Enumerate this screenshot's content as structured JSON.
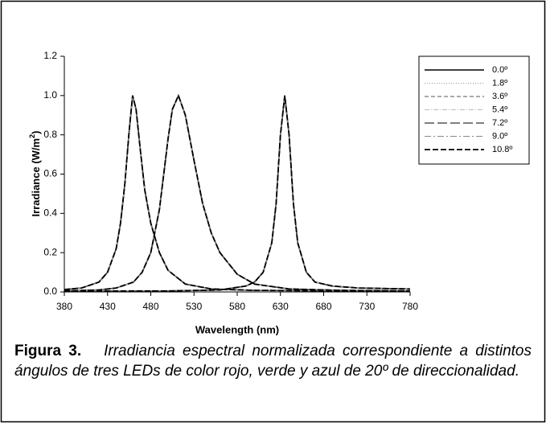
{
  "chart_data": {
    "type": "line",
    "x_label": "Wavelength (nm)",
    "y_label": [
      "Irradiance (W/m",
      "2",
      ")"
    ],
    "xlim": [
      380,
      780
    ],
    "xticks": [
      380,
      430,
      480,
      530,
      580,
      630,
      680,
      730,
      780
    ],
    "ylim": [
      0,
      1.2
    ],
    "yticks": [
      {
        "value": 0,
        "label": "0.0"
      },
      0.2,
      0.4,
      0.6,
      0.8,
      {
        "value": 1,
        "label": "1.0"
      },
      1.2
    ],
    "legend": "right",
    "x": [
      [
        380,
        400,
        420,
        430,
        440,
        445,
        450,
        455,
        459,
        463,
        468,
        473,
        480,
        490,
        500,
        520,
        550,
        600,
        700,
        780
      ],
      [
        380,
        420,
        440,
        460,
        470,
        480,
        490,
        500,
        505,
        512,
        520,
        530,
        540,
        550,
        560,
        580,
        600,
        640,
        700,
        780
      ],
      [
        380,
        500,
        560,
        590,
        600,
        610,
        620,
        625,
        630,
        635,
        640,
        645,
        650,
        660,
        670,
        690,
        720,
        780
      ]
    ],
    "series": [
      {
        "name": "0.0º",
        "color": "#000000",
        "dash": "none",
        "width": 1.6,
        "values": [
          [
            0.012,
            0.02,
            0.05,
            0.1,
            0.22,
            0.35,
            0.55,
            0.82,
            1.0,
            0.93,
            0.72,
            0.52,
            0.35,
            0.2,
            0.11,
            0.04,
            0.015,
            0.008,
            0.005,
            0.005
          ],
          [
            0.005,
            0.01,
            0.02,
            0.05,
            0.1,
            0.2,
            0.42,
            0.78,
            0.93,
            1.0,
            0.9,
            0.67,
            0.45,
            0.3,
            0.2,
            0.09,
            0.04,
            0.015,
            0.008,
            0.005
          ],
          [
            0.005,
            0.005,
            0.01,
            0.03,
            0.05,
            0.1,
            0.25,
            0.45,
            0.8,
            1.0,
            0.8,
            0.45,
            0.25,
            0.1,
            0.05,
            0.03,
            0.02,
            0.015
          ]
        ]
      },
      {
        "name": "1.8º",
        "color": "#999999",
        "dash": "1 2",
        "width": 1,
        "values": [
          [
            0.012,
            0.02,
            0.05,
            0.1,
            0.22,
            0.35,
            0.55,
            0.82,
            1.0,
            0.93,
            0.72,
            0.52,
            0.35,
            0.2,
            0.11,
            0.04,
            0.015,
            0.008,
            0.005,
            0.005
          ],
          [
            0.005,
            0.01,
            0.02,
            0.05,
            0.1,
            0.2,
            0.42,
            0.78,
            0.93,
            1.0,
            0.9,
            0.67,
            0.45,
            0.3,
            0.2,
            0.09,
            0.04,
            0.015,
            0.008,
            0.005
          ],
          [
            0.005,
            0.005,
            0.01,
            0.03,
            0.05,
            0.1,
            0.25,
            0.45,
            0.8,
            1.0,
            0.8,
            0.45,
            0.25,
            0.1,
            0.05,
            0.03,
            0.02,
            0.015
          ]
        ]
      },
      {
        "name": "3.6º",
        "color": "#555555",
        "dash": "5 3",
        "width": 1,
        "values": [
          [
            0.012,
            0.02,
            0.05,
            0.1,
            0.22,
            0.35,
            0.55,
            0.82,
            1.0,
            0.93,
            0.72,
            0.52,
            0.35,
            0.2,
            0.11,
            0.04,
            0.015,
            0.008,
            0.005,
            0.005
          ],
          [
            0.005,
            0.01,
            0.02,
            0.05,
            0.1,
            0.2,
            0.42,
            0.78,
            0.93,
            1.0,
            0.9,
            0.67,
            0.45,
            0.3,
            0.2,
            0.09,
            0.04,
            0.015,
            0.008,
            0.005
          ],
          [
            0.005,
            0.005,
            0.01,
            0.03,
            0.05,
            0.1,
            0.25,
            0.45,
            0.8,
            1.0,
            0.8,
            0.45,
            0.25,
            0.1,
            0.05,
            0.03,
            0.02,
            0.015
          ]
        ]
      },
      {
        "name": "5.4º",
        "color": "#bbbbbb",
        "dash": "6 2 1 2",
        "width": 1,
        "values": [
          [
            0.012,
            0.02,
            0.05,
            0.1,
            0.22,
            0.35,
            0.55,
            0.82,
            1.0,
            0.93,
            0.72,
            0.52,
            0.35,
            0.2,
            0.11,
            0.04,
            0.015,
            0.008,
            0.005,
            0.005
          ],
          [
            0.005,
            0.01,
            0.02,
            0.05,
            0.1,
            0.2,
            0.42,
            0.78,
            0.93,
            1.0,
            0.9,
            0.67,
            0.45,
            0.3,
            0.2,
            0.09,
            0.04,
            0.015,
            0.008,
            0.005
          ],
          [
            0.005,
            0.005,
            0.01,
            0.03,
            0.05,
            0.1,
            0.25,
            0.45,
            0.8,
            1.0,
            0.8,
            0.45,
            0.25,
            0.1,
            0.05,
            0.03,
            0.02,
            0.015
          ]
        ]
      },
      {
        "name": "7.2º",
        "color": "#333333",
        "dash": "12 4",
        "width": 1.2,
        "values": [
          [
            0.012,
            0.02,
            0.05,
            0.1,
            0.22,
            0.35,
            0.55,
            0.82,
            1.0,
            0.93,
            0.72,
            0.52,
            0.35,
            0.2,
            0.11,
            0.04,
            0.015,
            0.008,
            0.005,
            0.005
          ],
          [
            0.005,
            0.01,
            0.02,
            0.05,
            0.1,
            0.2,
            0.42,
            0.78,
            0.93,
            1.0,
            0.9,
            0.67,
            0.45,
            0.3,
            0.2,
            0.09,
            0.04,
            0.015,
            0.008,
            0.005
          ],
          [
            0.005,
            0.005,
            0.01,
            0.03,
            0.05,
            0.1,
            0.25,
            0.45,
            0.8,
            1.0,
            0.8,
            0.45,
            0.25,
            0.1,
            0.05,
            0.03,
            0.02,
            0.015
          ]
        ]
      },
      {
        "name": "9.0º",
        "color": "#888888",
        "dash": "8 3 2 3",
        "width": 1,
        "values": [
          [
            0.012,
            0.02,
            0.05,
            0.1,
            0.22,
            0.35,
            0.55,
            0.82,
            1.0,
            0.93,
            0.72,
            0.52,
            0.35,
            0.2,
            0.11,
            0.04,
            0.015,
            0.008,
            0.005,
            0.005
          ],
          [
            0.005,
            0.01,
            0.02,
            0.05,
            0.1,
            0.2,
            0.42,
            0.78,
            0.93,
            1.0,
            0.9,
            0.67,
            0.45,
            0.3,
            0.2,
            0.09,
            0.04,
            0.015,
            0.008,
            0.005
          ],
          [
            0.005,
            0.005,
            0.01,
            0.03,
            0.05,
            0.1,
            0.25,
            0.45,
            0.8,
            1.0,
            0.8,
            0.45,
            0.25,
            0.1,
            0.05,
            0.03,
            0.02,
            0.015
          ]
        ]
      },
      {
        "name": "10.8º",
        "color": "#000000",
        "dash": "7 3",
        "width": 1.8,
        "values": [
          [
            0.012,
            0.02,
            0.05,
            0.1,
            0.22,
            0.35,
            0.55,
            0.82,
            1.0,
            0.93,
            0.72,
            0.52,
            0.35,
            0.2,
            0.11,
            0.04,
            0.015,
            0.008,
            0.005,
            0.005
          ],
          [
            0.005,
            0.01,
            0.02,
            0.05,
            0.1,
            0.2,
            0.42,
            0.78,
            0.93,
            1.0,
            0.9,
            0.67,
            0.45,
            0.3,
            0.2,
            0.09,
            0.04,
            0.015,
            0.008,
            0.005
          ],
          [
            0.005,
            0.005,
            0.01,
            0.03,
            0.05,
            0.1,
            0.25,
            0.45,
            0.8,
            1.0,
            0.8,
            0.45,
            0.25,
            0.1,
            0.05,
            0.03,
            0.02,
            0.015
          ]
        ]
      }
    ],
    "caption": {
      "label": "Figura 3.",
      "text": "Irradiancia espectral normalizada correspondiente a distintos ángulos de tres LEDs de color rojo, verde y azul de 20º de direccionalidad."
    }
  }
}
